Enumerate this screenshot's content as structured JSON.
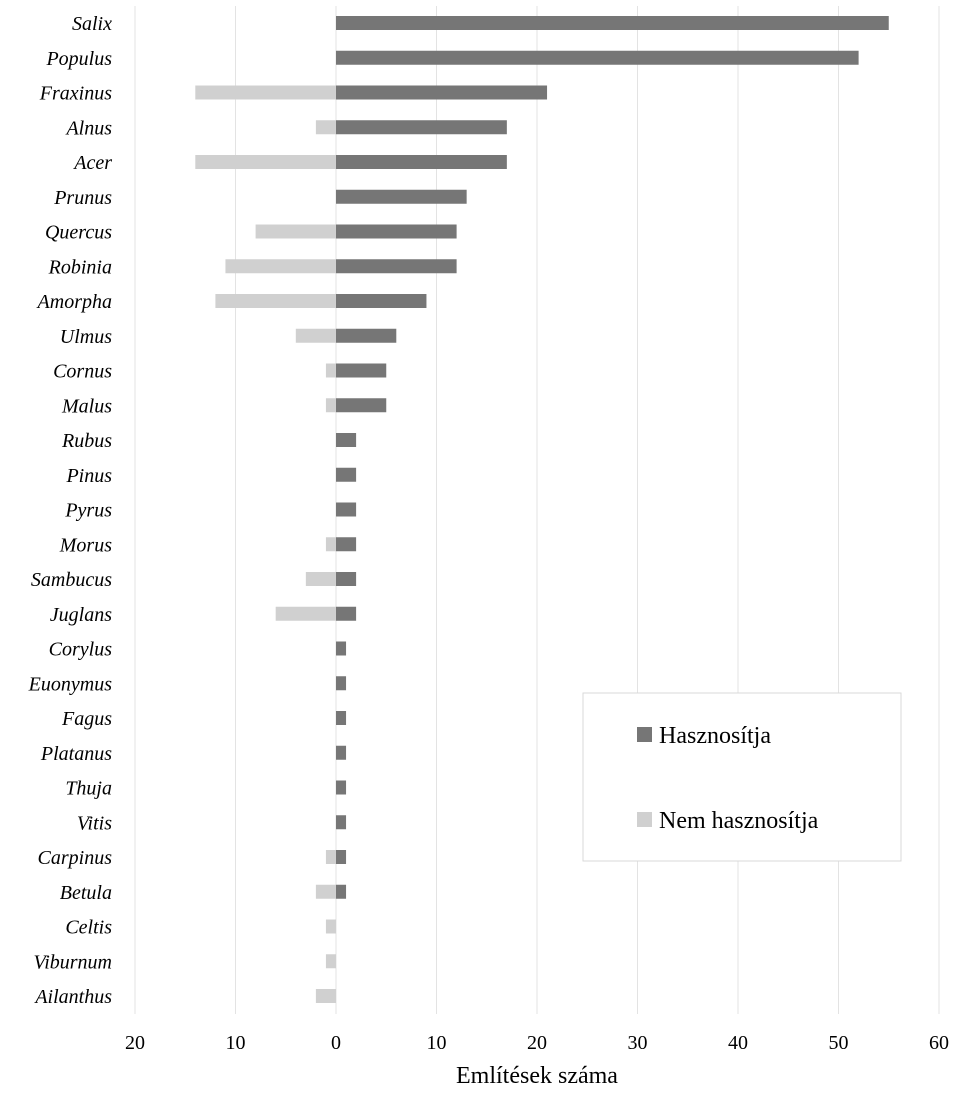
{
  "chart_data": {
    "type": "bar",
    "orientation": "horizontal",
    "categories": [
      "Salix",
      "Populus",
      "Fraxinus",
      "Alnus",
      "Acer",
      "Prunus",
      "Quercus",
      "Robinia",
      "Amorpha",
      "Ulmus",
      "Cornus",
      "Malus",
      "Rubus",
      "Pinus",
      "Pyrus",
      "Morus",
      "Sambucus",
      "Juglans",
      "Corylus",
      "Euonymus",
      "Fagus",
      "Platanus",
      "Thuja",
      "Vitis",
      "Carpinus",
      "Betula",
      "Celtis",
      "Viburnum",
      "Ailanthus"
    ],
    "series": [
      {
        "name": "Hasznosítja",
        "color": "#767676",
        "direction": "right",
        "values": [
          55,
          52,
          21,
          17,
          17,
          13,
          12,
          12,
          9,
          6,
          5,
          5,
          2,
          2,
          2,
          2,
          2,
          2,
          1,
          1,
          1,
          1,
          1,
          1,
          1,
          1,
          0,
          0,
          0
        ]
      },
      {
        "name": "Nem hasznosítja",
        "color": "#d0d0d0",
        "direction": "left",
        "values": [
          0,
          0,
          14,
          2,
          14,
          0,
          8,
          11,
          12,
          4,
          1,
          1,
          0,
          0,
          0,
          1,
          3,
          6,
          0,
          0,
          0,
          0,
          0,
          0,
          1,
          2,
          1,
          1,
          2
        ]
      }
    ],
    "xlim": [
      -20,
      60
    ],
    "xticks": [
      -20,
      -10,
      0,
      10,
      20,
      30,
      40,
      50,
      60
    ],
    "xtick_labels": [
      "20",
      "10",
      "0",
      "10",
      "20",
      "30",
      "40",
      "50",
      "60"
    ],
    "xlabel": "Említések száma",
    "ylabel": "",
    "title": "",
    "grid": "vertical",
    "legend_position": "lower-right"
  }
}
